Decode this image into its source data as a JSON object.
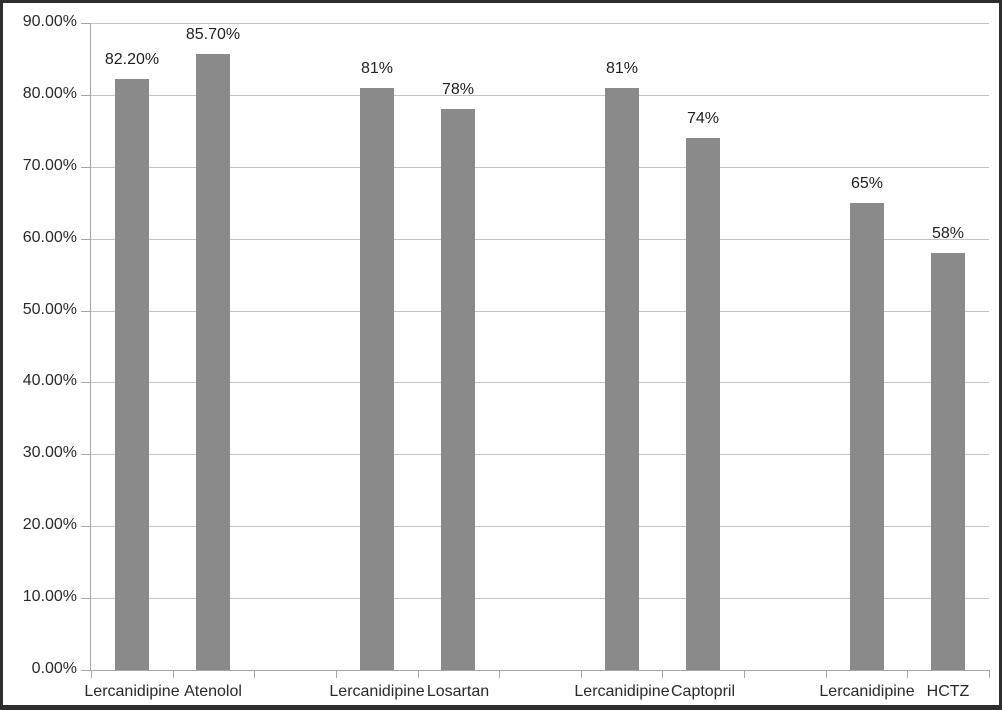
{
  "chart_data": {
    "type": "bar",
    "categories": [
      "Lercanidipine",
      "Atenolol",
      "",
      "Lercanidipine",
      "Losartan",
      "",
      "Lercanidipine",
      "Captopril",
      "",
      "Lercanidipine",
      "HCTZ"
    ],
    "values": [
      82.2,
      85.7,
      null,
      81,
      78,
      null,
      81,
      74,
      null,
      65,
      58
    ],
    "bar_labels": [
      "82.20%",
      "85.70%",
      "",
      "81%",
      "78%",
      "",
      "81%",
      "74%",
      "",
      "65%",
      "58%"
    ],
    "title": "",
    "xlabel": "",
    "ylabel": "",
    "ylim": [
      0,
      90
    ],
    "ytick_labels": [
      "0.00%",
      "10.00%",
      "20.00%",
      "30.00%",
      "40.00%",
      "50.00%",
      "60.00%",
      "70.00%",
      "80.00%",
      "90.00%"
    ],
    "ytick_values": [
      0,
      10,
      20,
      30,
      40,
      50,
      60,
      70,
      80,
      90
    ],
    "grid": true,
    "legend": false,
    "colors": {
      "bar": "#8a8a8a",
      "gridline": "#c3c3c3",
      "axis": "#a6a6a6",
      "text": "#2a2a2a",
      "frame_border": "#2e2e2e",
      "background": "#ffffff"
    }
  }
}
